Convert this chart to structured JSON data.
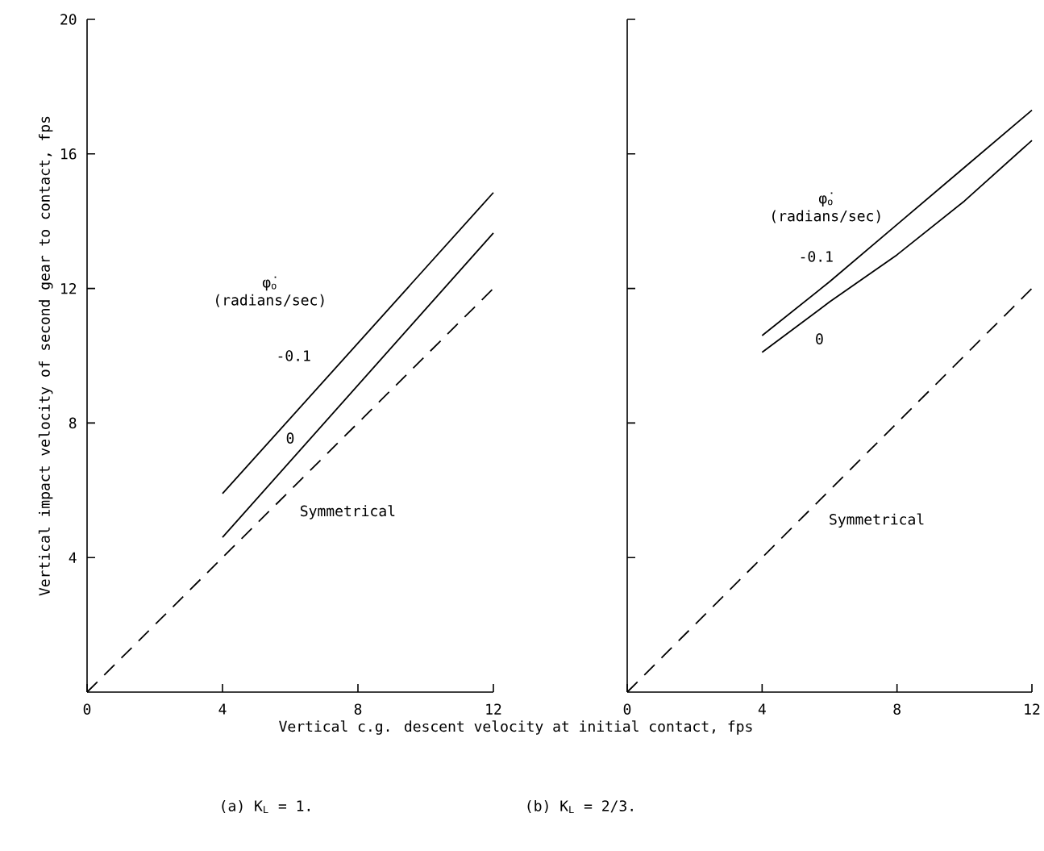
{
  "chart_data": [
    {
      "type": "line",
      "title": "(a) K$_{L}$ = 1.",
      "xlabel": "Vertical c.g. descent velocity at initial contact, fps",
      "ylabel": "Vertical impact velocity of second gear to contact, fps",
      "legend_title": "φ̇$_{o}$ (radians/sec)",
      "xlim": [
        0,
        12
      ],
      "ylim": [
        0,
        20
      ],
      "xticks": [
        0,
        4,
        8,
        12
      ],
      "yticks": [
        4,
        8,
        12,
        16,
        20
      ],
      "series": [
        {
          "name": "-0.1",
          "color": "#000000",
          "line_style": "solid",
          "x": [
            4,
            12
          ],
          "values": [
            5.9,
            14.85
          ]
        },
        {
          "name": "0",
          "color": "#000000",
          "line_style": "solid",
          "x": [
            4,
            12
          ],
          "values": [
            4.6,
            13.65
          ]
        },
        {
          "name": "Symmetrical",
          "color": "#000000",
          "line_style": "dashed",
          "x": [
            0,
            12
          ],
          "values": [
            0,
            12
          ]
        }
      ]
    },
    {
      "type": "line",
      "title": "(b) K$_{L}$ = 2/3.",
      "legend_title": "φ̇$_{o}$ (radians/sec)",
      "xlim": [
        0,
        12
      ],
      "ylim": [
        0,
        20
      ],
      "xticks": [
        0,
        4,
        8,
        12
      ],
      "yticks": [
        4,
        8,
        12,
        16,
        20
      ],
      "tick_labels": "x",
      "series": [
        {
          "name": "-0.1",
          "color": "#000000",
          "line_style": "solid",
          "x": [
            4,
            6,
            8,
            10,
            12
          ],
          "values": [
            10.6,
            12.2,
            13.9,
            15.6,
            17.3
          ]
        },
        {
          "name": "0",
          "color": "#000000",
          "line_style": "solid",
          "x": [
            4,
            6,
            8,
            10,
            12
          ],
          "values": [
            10.1,
            11.6,
            13.0,
            14.6,
            16.4
          ]
        },
        {
          "name": "Symmetrical",
          "color": "#000000",
          "line_style": "dashed",
          "x": [
            0,
            12
          ],
          "values": [
            0,
            12
          ]
        }
      ]
    }
  ]
}
